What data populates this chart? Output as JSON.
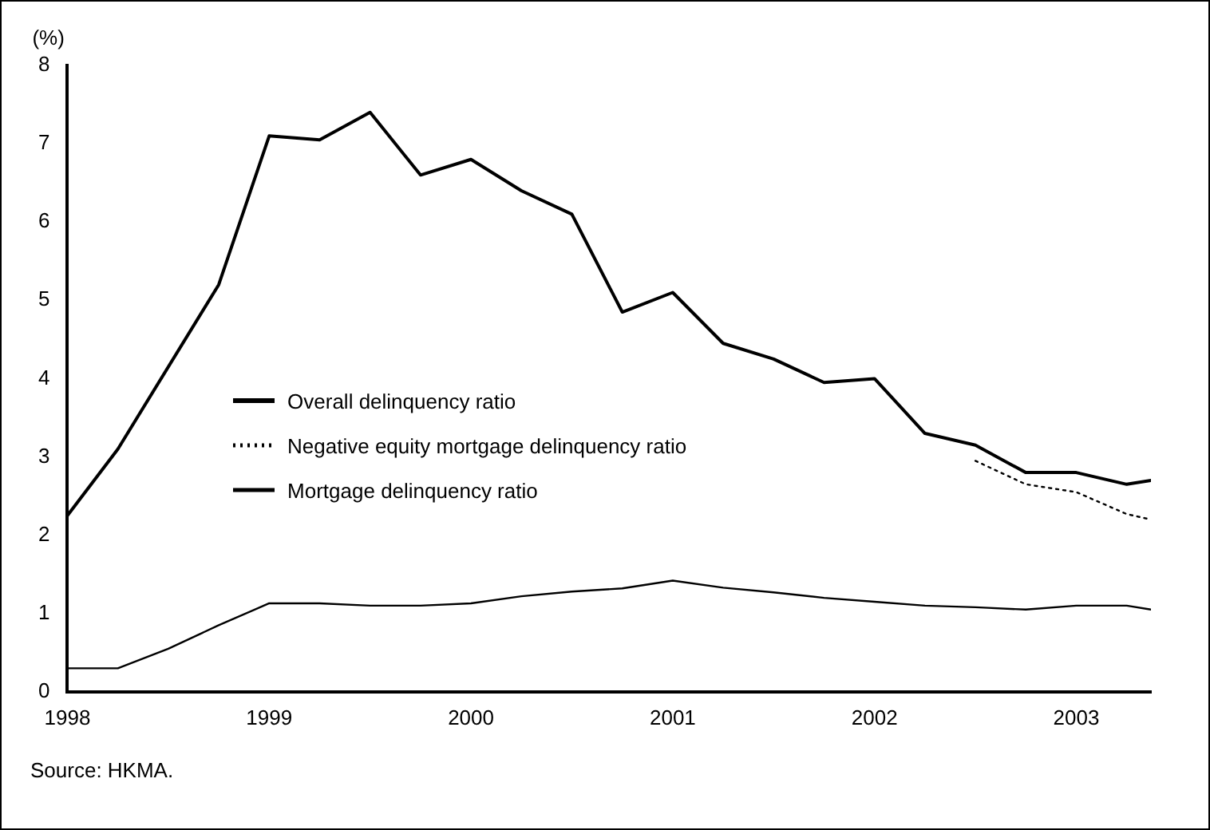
{
  "chart_data": {
    "type": "line",
    "ylabel": "(%)",
    "annotations": [
      "Source: HKMA."
    ],
    "xlim": [
      1998,
      2003.37
    ],
    "xticks": [
      1998,
      1999,
      2000,
      2001,
      2002,
      2003
    ],
    "ylim": [
      0,
      8
    ],
    "yticks": [
      0,
      1,
      2,
      3,
      4,
      5,
      6,
      7,
      8
    ],
    "grid": false,
    "legend": "left",
    "marker": "none",
    "series": [
      {
        "name": "Overall delinquency ratio",
        "color": "#000000",
        "line_style": "solid",
        "x": [
          1998,
          1998.25,
          1998.75,
          1999,
          1999.25,
          1999.5,
          1999.75,
          2000,
          2000.25,
          2000.5,
          2000.75,
          2001,
          2001.25,
          2001.5,
          2001.75,
          2002,
          2002.25,
          2002.5,
          2002.75,
          2003,
          2003.25,
          2003.37
        ],
        "values": [
          2.25,
          3.1,
          5.2,
          7.1,
          7.05,
          7.4,
          6.6,
          6.8,
          6.4,
          6.1,
          4.85,
          5.1,
          4.45,
          4.25,
          3.95,
          4.0,
          3.3,
          3.15,
          2.8,
          2.8,
          2.65,
          2.7
        ]
      },
      {
        "name": "Negative equity mortgage delinquency ratio",
        "color": "#000000",
        "line_style": "dotted",
        "x": [
          2002.5,
          2002.75,
          2003,
          2003.25,
          2003.37
        ],
        "values": [
          2.95,
          2.65,
          2.55,
          2.27,
          2.2
        ]
      },
      {
        "name": "Mortgage delinquency ratio",
        "color": "#000000",
        "line_style": "solid",
        "x": [
          1998,
          1998.25,
          1998.5,
          1998.75,
          1999,
          1999.25,
          1999.5,
          1999.75,
          2000,
          2000.25,
          2000.5,
          2000.75,
          2001,
          2001.25,
          2001.5,
          2001.75,
          2002,
          2002.25,
          2002.5,
          2002.75,
          2003,
          2003.25,
          2003.37
        ],
        "values": [
          0.3,
          0.3,
          0.55,
          0.85,
          1.13,
          1.13,
          1.1,
          1.1,
          1.13,
          1.22,
          1.28,
          1.32,
          1.42,
          1.33,
          1.27,
          1.2,
          1.15,
          1.1,
          1.08,
          1.05,
          1.1,
          1.1,
          1.05
        ]
      }
    ]
  }
}
